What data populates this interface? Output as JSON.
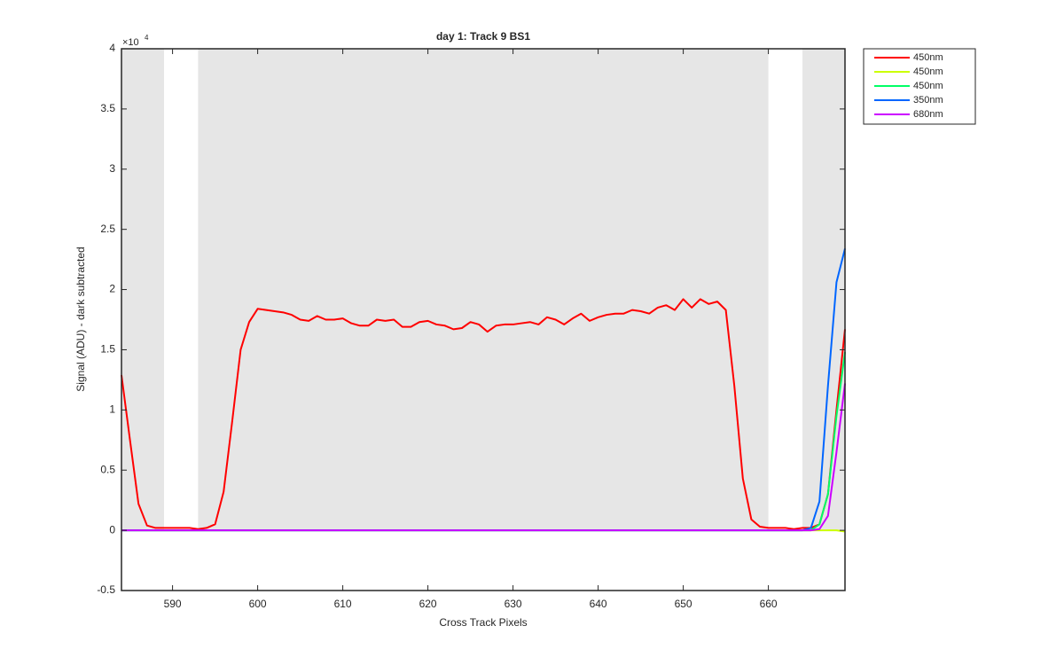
{
  "chart_data": {
    "type": "line",
    "title": "day 1: Track 9  BS1",
    "x_label": "Cross Track Pixels",
    "y_label": "Signal (ADU) - dark subtracted",
    "y_multiplier": {
      "base": "×10",
      "exponent": "4"
    },
    "x": [
      584,
      585,
      586,
      587,
      588,
      589,
      590,
      591,
      592,
      593,
      594,
      595,
      596,
      597,
      598,
      599,
      600,
      601,
      602,
      603,
      604,
      605,
      606,
      607,
      608,
      609,
      610,
      611,
      612,
      613,
      614,
      615,
      616,
      617,
      618,
      619,
      620,
      621,
      622,
      623,
      624,
      625,
      626,
      627,
      628,
      629,
      630,
      631,
      632,
      633,
      634,
      635,
      636,
      637,
      638,
      639,
      640,
      641,
      642,
      643,
      644,
      645,
      646,
      647,
      648,
      649,
      650,
      651,
      652,
      653,
      654,
      655,
      656,
      657,
      658,
      659,
      660,
      661,
      662,
      663,
      664,
      665,
      666,
      667,
      668,
      669
    ],
    "series": [
      {
        "name": "450nm",
        "color": "#ff0000",
        "values": [
          1.29,
          0.75,
          0.22,
          0.04,
          0.02,
          0.02,
          0.02,
          0.02,
          0.02,
          0.01,
          0.02,
          0.05,
          0.32,
          0.9,
          1.5,
          1.73,
          1.84,
          1.83,
          1.82,
          1.81,
          1.79,
          1.75,
          1.74,
          1.78,
          1.75,
          1.75,
          1.76,
          1.72,
          1.7,
          1.7,
          1.75,
          1.74,
          1.75,
          1.69,
          1.69,
          1.73,
          1.74,
          1.71,
          1.7,
          1.67,
          1.68,
          1.73,
          1.71,
          1.65,
          1.7,
          1.71,
          1.71,
          1.72,
          1.73,
          1.71,
          1.77,
          1.75,
          1.71,
          1.76,
          1.8,
          1.74,
          1.77,
          1.79,
          1.8,
          1.8,
          1.83,
          1.82,
          1.8,
          1.85,
          1.87,
          1.83,
          1.92,
          1.85,
          1.92,
          1.88,
          1.9,
          1.83,
          1.2,
          0.43,
          0.09,
          0.03,
          0.02,
          0.02,
          0.02,
          0.01,
          0.02,
          0.02,
          0.05,
          0.3,
          1.0,
          1.67
        ]
      },
      {
        "name": "450nm",
        "color": "#ccff00",
        "values": [
          0,
          0,
          0,
          0,
          0,
          0,
          0,
          0,
          0,
          0,
          0,
          0,
          0,
          0,
          0,
          0,
          0,
          0,
          0,
          0,
          0,
          0,
          0,
          0,
          0,
          0,
          0,
          0,
          0,
          0,
          0,
          0,
          0,
          0,
          0,
          0,
          0,
          0,
          0,
          0,
          0,
          0,
          0,
          0,
          0,
          0,
          0,
          0,
          0,
          0,
          0,
          0,
          0,
          0,
          0,
          0,
          0,
          0,
          0,
          0,
          0,
          0,
          0,
          0,
          0,
          0,
          0,
          0,
          0,
          0,
          0,
          0,
          0,
          0,
          0,
          0,
          0,
          0,
          0,
          0,
          0,
          0,
          0,
          0,
          0,
          -0.01
        ]
      },
      {
        "name": "450nm",
        "color": "#00ff66",
        "values": [
          0,
          0,
          0,
          0,
          0,
          0,
          0,
          0,
          0,
          0,
          0,
          0,
          0,
          0,
          0,
          0,
          0,
          0,
          0,
          0,
          0,
          0,
          0,
          0,
          0,
          0,
          0,
          0,
          0,
          0,
          0,
          0,
          0,
          0,
          0,
          0,
          0,
          0,
          0,
          0,
          0,
          0,
          0,
          0,
          0,
          0,
          0,
          0,
          0,
          0,
          0,
          0,
          0,
          0,
          0,
          0,
          0,
          0,
          0,
          0,
          0,
          0,
          0,
          0,
          0,
          0,
          0,
          0,
          0,
          0,
          0,
          0,
          0,
          0,
          0,
          0,
          0,
          0,
          0,
          0,
          0,
          0,
          0.05,
          0.3,
          0.95,
          1.48
        ]
      },
      {
        "name": "350nm",
        "color": "#0066ff",
        "values": [
          0,
          0,
          0,
          0,
          0,
          0,
          0,
          0,
          0,
          0,
          0,
          0,
          0,
          0,
          0,
          0,
          0,
          0,
          0,
          0,
          0,
          0,
          0,
          0,
          0,
          0,
          0,
          0,
          0,
          0,
          0,
          0,
          0,
          0,
          0,
          0,
          0,
          0,
          0,
          0,
          0,
          0,
          0,
          0,
          0,
          0,
          0,
          0,
          0,
          0,
          0,
          0,
          0,
          0,
          0,
          0,
          0,
          0,
          0,
          0,
          0,
          0,
          0,
          0,
          0,
          0,
          0,
          0,
          0,
          0,
          0,
          0,
          0,
          0,
          0,
          0,
          0,
          0,
          0,
          0,
          0,
          0.02,
          0.24,
          1.2,
          2.06,
          2.34
        ]
      },
      {
        "name": "680nm",
        "color": "#cc00ff",
        "values": [
          0,
          0,
          0,
          0,
          0,
          0,
          0,
          0,
          0,
          0,
          0,
          0,
          0,
          0,
          0,
          0,
          0,
          0,
          0,
          0,
          0,
          0,
          0,
          0,
          0,
          0,
          0,
          0,
          0,
          0,
          0,
          0,
          0,
          0,
          0,
          0,
          0,
          0,
          0,
          0,
          0,
          0,
          0,
          0,
          0,
          0,
          0,
          0,
          0,
          0,
          0,
          0,
          0,
          0,
          0,
          0,
          0,
          0,
          0,
          0,
          0,
          0,
          0,
          0,
          0,
          0,
          0,
          0,
          0,
          0,
          0,
          0,
          0,
          0,
          0,
          0,
          0,
          0,
          0,
          0,
          0,
          0,
          0.01,
          0.12,
          0.65,
          1.22
        ]
      }
    ],
    "shaded_regions": [
      [
        584,
        589
      ],
      [
        593,
        660
      ],
      [
        664,
        669
      ]
    ],
    "shaded_ylim": [
      0,
      4
    ],
    "shade_color": "#e6e6e6",
    "xlim": [
      584,
      669
    ],
    "ylim": [
      -0.5,
      4
    ],
    "xticks": [
      590,
      600,
      610,
      620,
      630,
      640,
      650,
      660
    ],
    "yticks": [
      -0.5,
      0,
      0.5,
      1,
      1.5,
      2,
      2.5,
      3,
      3.5,
      4
    ],
    "legend": "outside-top-right"
  }
}
